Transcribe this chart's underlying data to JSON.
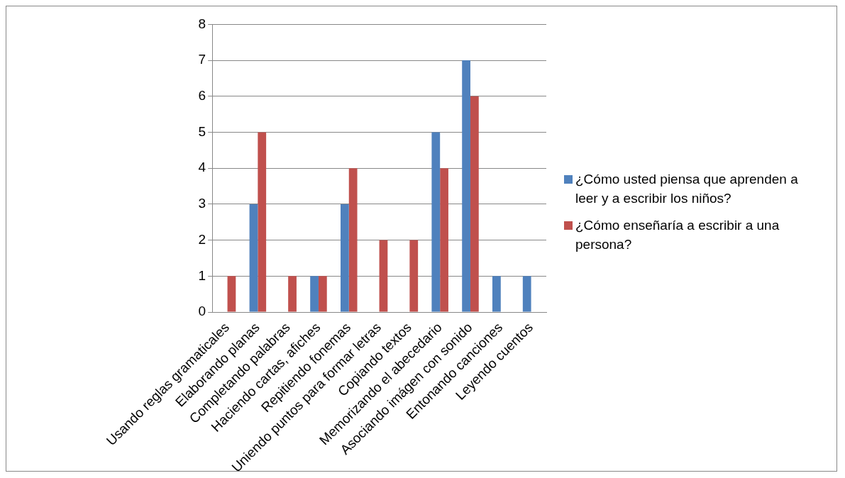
{
  "chart_data": {
    "type": "bar",
    "categories": [
      "Usando reglas gramaticales",
      "Elaborando planas",
      "Completando palabras",
      "Haciendo cartas, afiches",
      "Repitiendo fonemas",
      "Uniendo puntos para formar letras",
      "Copiando textos",
      "Memorizando el abecedario",
      "Asociando imágen con sonido",
      "Entonando canciones",
      "Leyendo cuentos"
    ],
    "series": [
      {
        "name": "¿Cómo usted piensa que aprenden a leer y a escribir  los niños?",
        "color": "#4f81bd",
        "values": [
          0,
          3,
          0,
          1,
          3,
          0,
          0,
          5,
          7,
          1,
          1
        ]
      },
      {
        "name": "¿Cómo enseñaría a escribir a una persona?",
        "color": "#c0504d",
        "values": [
          1,
          5,
          1,
          1,
          4,
          2,
          2,
          4,
          6,
          0,
          0
        ]
      }
    ],
    "ylim": [
      0,
      8
    ],
    "yticks": [
      0,
      1,
      2,
      3,
      4,
      5,
      6,
      7,
      8
    ],
    "grid": "y",
    "legend": "right"
  }
}
